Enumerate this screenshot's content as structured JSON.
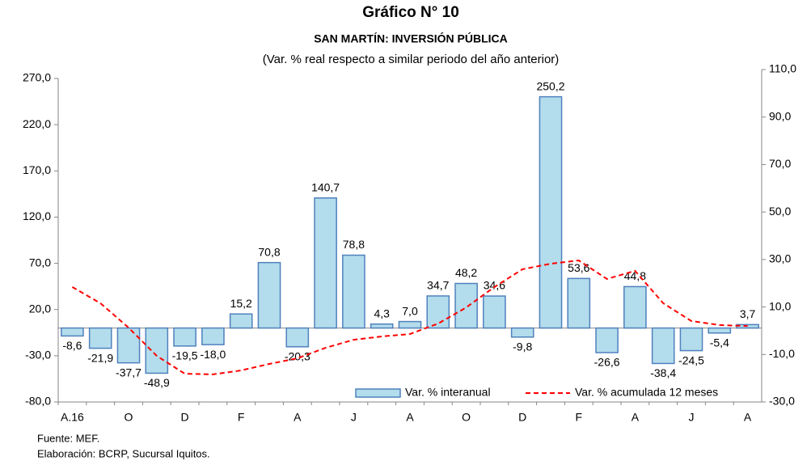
{
  "chart_data": {
    "type": "bar",
    "title": "Gráfico N° 10",
    "subtitle": "SAN MARTÍN: INVERSIÓN PÚBLICA",
    "note": "(Var. % real respecto a similar periodo del año anterior)",
    "categories": [
      "A.16",
      null,
      "O",
      null,
      "D",
      null,
      "F",
      null,
      "A",
      null,
      "J",
      null,
      "A",
      null,
      "O",
      null,
      "D",
      null,
      "F",
      null,
      "A",
      null,
      "J",
      null,
      "A"
    ],
    "series": [
      {
        "name": "Var. % interanual",
        "type": "bar",
        "color": "#b3dcec",
        "edgecolor": "#4f81bd",
        "values": [
          -8.6,
          -21.9,
          -37.7,
          -48.9,
          -19.5,
          -18.0,
          15.2,
          70.8,
          -20.3,
          140.7,
          78.8,
          4.3,
          7.0,
          34.7,
          48.2,
          34.6,
          -9.8,
          250.2,
          53.6,
          -26.6,
          44.8,
          -38.4,
          -24.5,
          -5.4,
          3.7
        ],
        "value_labels": [
          "-8,6",
          "-21,9",
          "-37,7",
          "-48,9",
          "-19,5",
          "-18,0",
          "15,2",
          "70,8",
          "-20,3",
          "140,7",
          "78,8",
          "4,3",
          "7,0",
          "34,7",
          "48,2",
          "34,6",
          "-9,8",
          "250,2",
          "53,6",
          "-26,6",
          "44,8",
          "-38,4",
          "-24,5",
          "-5,4",
          "3,7"
        ]
      },
      {
        "name": "Var. % acumulada 12 meses",
        "type": "line",
        "axis": "y2",
        "color": "#ff0000",
        "values": [
          18.4,
          11.6,
          1.3,
          -10.6,
          -18.1,
          -18.4,
          -16.7,
          -14.0,
          -11.6,
          -7.2,
          -3.8,
          -2.4,
          -1.4,
          3.0,
          9.8,
          18.4,
          25.9,
          28.2,
          29.6,
          21.8,
          25.2,
          11.6,
          4.1,
          2.4,
          2.0
        ]
      }
    ],
    "ylim": [
      -80,
      270
    ],
    "yticks": [
      {
        "value": -80,
        "label": "-80,0"
      },
      {
        "value": -30,
        "label": "-30,0"
      },
      {
        "value": 20,
        "label": "20,0"
      },
      {
        "value": 70,
        "label": "70,0"
      },
      {
        "value": 120,
        "label": "120,0"
      },
      {
        "value": 170,
        "label": "170,0"
      },
      {
        "value": 220,
        "label": "220,0"
      },
      {
        "value": 270,
        "label": "270,0"
      }
    ],
    "y2lim": [
      -30,
      110
    ],
    "y2ticks": [
      {
        "value": -30,
        "label": "-30,0"
      },
      {
        "value": -10,
        "label": "-10,0"
      },
      {
        "value": 10,
        "label": "10,0"
      },
      {
        "value": 30,
        "label": "30,0"
      },
      {
        "value": 50,
        "label": "50,0"
      },
      {
        "value": 70,
        "label": "70,0"
      },
      {
        "value": 90,
        "label": "90,0"
      },
      {
        "value": 110,
        "label": "110,0"
      }
    ],
    "legend": "lower right",
    "source": [
      "Fuente: MEF.",
      "Elaboración: BCRP, Sucursal Iquitos."
    ]
  }
}
